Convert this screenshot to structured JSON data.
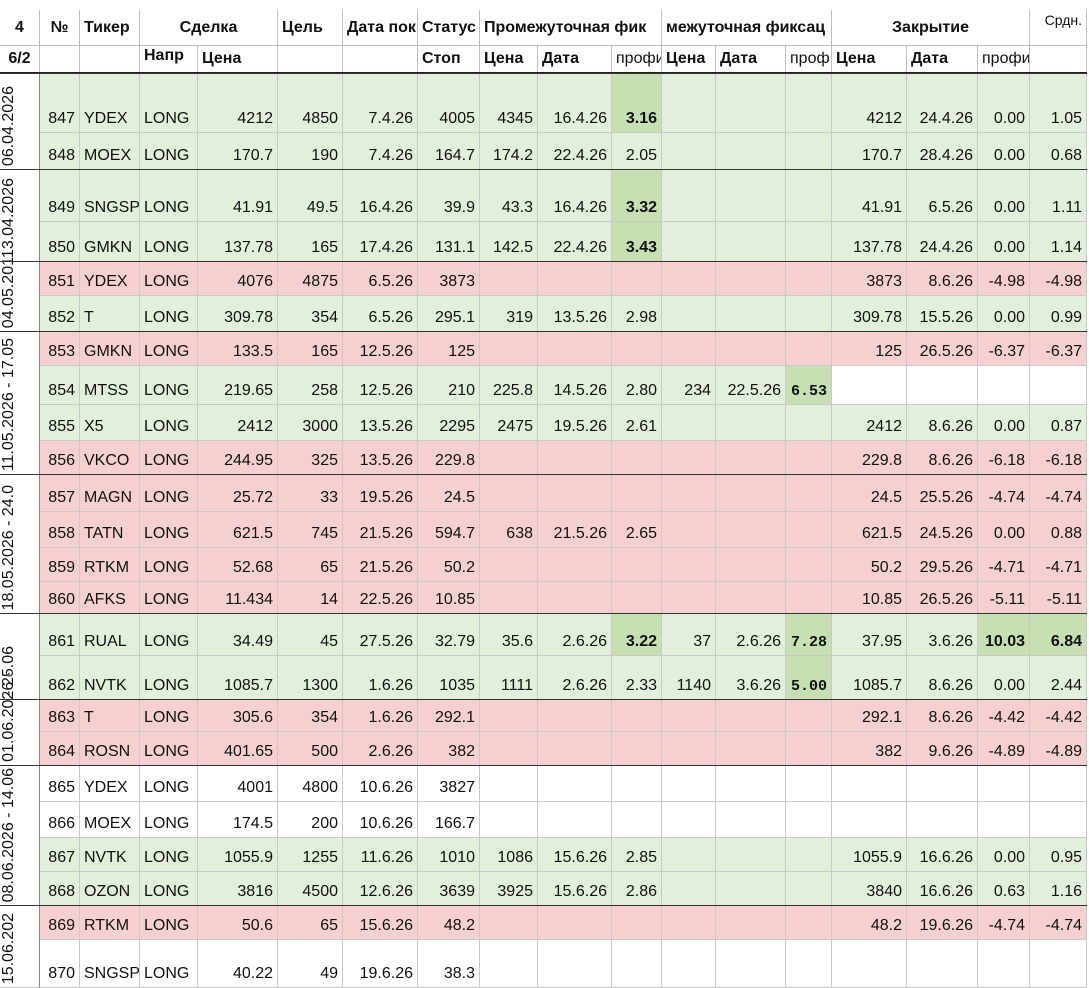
{
  "header": {
    "row1": [
      "4",
      "№",
      "Тикер",
      "Сделка",
      "Цель",
      "Дата пок",
      "Статус",
      "Промежуточная фик",
      "межуточная фиксац",
      "Закрытие",
      "Срдн."
    ],
    "row2": [
      "6/2",
      null,
      null,
      "Напр",
      "Цена",
      null,
      null,
      "Стоп",
      "Цена",
      "Дата",
      "профи",
      "Цена",
      "Дата",
      "проф",
      "Цена",
      "Дата",
      "профит",
      null
    ]
  },
  "weeks": [
    "06.04.2026",
    "13.04.2026",
    "04.05.201",
    "11.05.2026 - 17.05",
    "18.05.2026 - 24.0",
    "- 25.06",
    "01.06.2026 -",
    "08.06.2026 - 14.06",
    "15.06.202"
  ],
  "rows": [
    [
      "847",
      "YDEX",
      "LONG",
      "4212",
      "4850",
      "7.4.26",
      "4005",
      "4345",
      "16.4.26",
      "3.16",
      null,
      null,
      null,
      "4212",
      "24.4.26",
      "0.00",
      "1.05"
    ],
    [
      "848",
      "MOEX",
      "LONG",
      "170.7",
      "190",
      "7.4.26",
      "164.7",
      "174.2",
      "22.4.26",
      "2.05",
      null,
      null,
      null,
      "170.7",
      "28.4.26",
      "0.00",
      "0.68"
    ],
    [
      "849",
      "SNGSP",
      "LONG",
      "41.91",
      "49.5",
      "16.4.26",
      "39.9",
      "43.3",
      "16.4.26",
      "3.32",
      null,
      null,
      null,
      "41.91",
      "6.5.26",
      "0.00",
      "1.11"
    ],
    [
      "850",
      "GMKN",
      "LONG",
      "137.78",
      "165",
      "17.4.26",
      "131.1",
      "142.5",
      "22.4.26",
      "3.43",
      null,
      null,
      null,
      "137.78",
      "24.4.26",
      "0.00",
      "1.14"
    ],
    [
      "851",
      "YDEX",
      "LONG",
      "4076",
      "4875",
      "6.5.26",
      "3873",
      null,
      null,
      null,
      null,
      null,
      null,
      "3873",
      "8.6.26",
      "-4.98",
      "-4.98"
    ],
    [
      "852",
      "T",
      "LONG",
      "309.78",
      "354",
      "6.5.26",
      "295.1",
      "319",
      "13.5.26",
      "2.98",
      null,
      null,
      null,
      "309.78",
      "15.5.26",
      "0.00",
      "0.99"
    ],
    [
      "853",
      "GMKN",
      "LONG",
      "133.5",
      "165",
      "12.5.26",
      "125",
      null,
      null,
      null,
      null,
      null,
      null,
      "125",
      "26.5.26",
      "-6.37",
      "-6.37"
    ],
    [
      "854",
      "MTSS",
      "LONG",
      "219.65",
      "258",
      "12.5.26",
      "210",
      "225.8",
      "14.5.26",
      "2.80",
      "234",
      "22.5.26",
      "6.53",
      null,
      null,
      null,
      null
    ],
    [
      "855",
      "X5",
      "LONG",
      "2412",
      "3000",
      "13.5.26",
      "2295",
      "2475",
      "19.5.26",
      "2.61",
      null,
      null,
      null,
      "2412",
      "8.6.26",
      "0.00",
      "0.87"
    ],
    [
      "856",
      "VKCO",
      "LONG",
      "244.95",
      "325",
      "13.5.26",
      "229.8",
      null,
      null,
      null,
      null,
      null,
      null,
      "229.8",
      "8.6.26",
      "-6.18",
      "-6.18"
    ],
    [
      "857",
      "MAGN",
      "LONG",
      "25.72",
      "33",
      "19.5.26",
      "24.5",
      null,
      null,
      null,
      null,
      null,
      null,
      "24.5",
      "25.5.26",
      "-4.74",
      "-4.74"
    ],
    [
      "858",
      "TATN",
      "LONG",
      "621.5",
      "745",
      "21.5.26",
      "594.7",
      "638",
      "21.5.26",
      "2.65",
      null,
      null,
      null,
      "621.5",
      "24.5.26",
      "0.00",
      "0.88"
    ],
    [
      "859",
      "RTKM",
      "LONG",
      "52.68",
      "65",
      "21.5.26",
      "50.2",
      null,
      null,
      null,
      null,
      null,
      null,
      "50.2",
      "29.5.26",
      "-4.71",
      "-4.71"
    ],
    [
      "860",
      "AFKS",
      "LONG",
      "11.434",
      "14",
      "22.5.26",
      "10.85",
      null,
      null,
      null,
      null,
      null,
      null,
      "10.85",
      "26.5.26",
      "-5.11",
      "-5.11"
    ],
    [
      "861",
      "RUAL",
      "LONG",
      "34.49",
      "45",
      "27.5.26",
      "32.79",
      "35.6",
      "2.6.26",
      "3.22",
      "37",
      "2.6.26",
      "7.28",
      "37.95",
      "3.6.26",
      "10.03",
      "6.84"
    ],
    [
      "862",
      "NVTK",
      "LONG",
      "1085.7",
      "1300",
      "1.6.26",
      "1035",
      "1111",
      "2.6.26",
      "2.33",
      "1140",
      "3.6.26",
      "5.00",
      "1085.7",
      "8.6.26",
      "0.00",
      "2.44"
    ],
    [
      "863",
      "T",
      "LONG",
      "305.6",
      "354",
      "1.6.26",
      "292.1",
      null,
      null,
      null,
      null,
      null,
      null,
      "292.1",
      "8.6.26",
      "-4.42",
      "-4.42"
    ],
    [
      "864",
      "ROSN",
      "LONG",
      "401.65",
      "500",
      "2.6.26",
      "382",
      null,
      null,
      null,
      null,
      null,
      null,
      "382",
      "9.6.26",
      "-4.89",
      "-4.89"
    ],
    [
      "865",
      "YDEX",
      "LONG",
      "4001",
      "4800",
      "10.6.26",
      "3827",
      null,
      null,
      null,
      null,
      null,
      null,
      null,
      null,
      null,
      null
    ],
    [
      "866",
      "MOEX",
      "LONG",
      "174.5",
      "200",
      "10.6.26",
      "166.7",
      null,
      null,
      null,
      null,
      null,
      null,
      null,
      null,
      null,
      null
    ],
    [
      "867",
      "NVTK",
      "LONG",
      "1055.9",
      "1255",
      "11.6.26",
      "1010",
      "1086",
      "15.6.26",
      "2.85",
      null,
      null,
      null,
      "1055.9",
      "16.6.26",
      "0.00",
      "0.95"
    ],
    [
      "868",
      "OZON",
      "LONG",
      "3816",
      "4500",
      "12.6.26",
      "3639",
      "3925",
      "15.6.26",
      "2.86",
      null,
      null,
      null,
      "3840",
      "16.6.26",
      "0.63",
      "1.16"
    ],
    [
      "869",
      "RTKM",
      "LONG",
      "50.6",
      "65",
      "15.6.26",
      "48.2",
      null,
      null,
      null,
      null,
      null,
      null,
      "48.2",
      "19.6.26",
      "-4.74",
      "-4.74"
    ],
    [
      "870",
      "SNGSP",
      "LONG",
      "40.22",
      "49",
      "19.6.26",
      "38.3",
      null,
      null,
      null,
      null,
      null,
      null,
      null,
      null,
      null,
      null
    ]
  ]
}
